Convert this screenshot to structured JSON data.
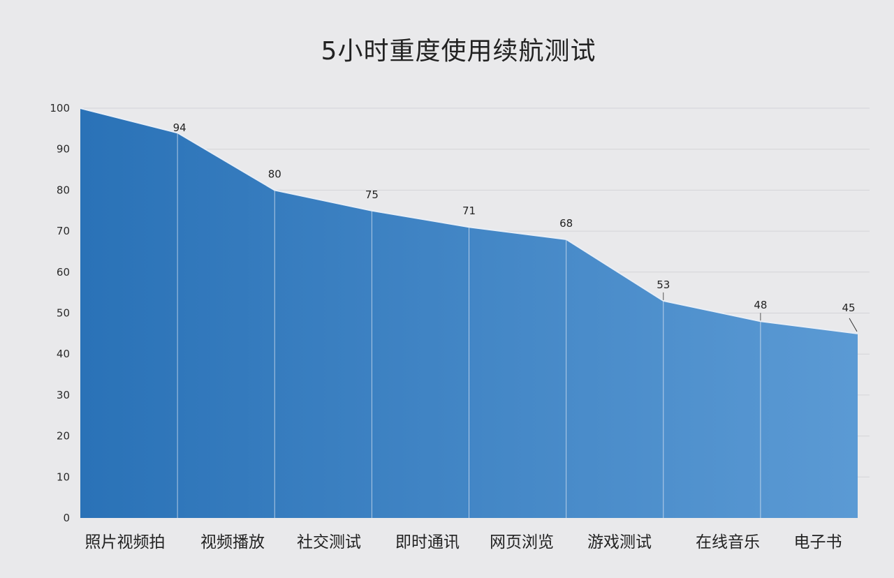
{
  "chart_data": {
    "type": "area",
    "title": "5小时重度使用续航测试",
    "xlabel": "",
    "ylabel": "",
    "ylim": [
      0,
      100
    ],
    "yticks": [
      0,
      10,
      20,
      30,
      40,
      50,
      60,
      70,
      80,
      90,
      100
    ],
    "categories": [
      "照片视频拍",
      "视频播放",
      "社交测试",
      "即时通讯",
      "网页浏览",
      "游戏测试",
      "在线音乐",
      "电子书"
    ],
    "points": [
      {
        "x": "start",
        "y": 100
      },
      {
        "x": "照片视频拍",
        "y": 94
      },
      {
        "x": "视频播放",
        "y": 80
      },
      {
        "x": "社交测试",
        "y": 75
      },
      {
        "x": "即时通讯",
        "y": 71
      },
      {
        "x": "网页浏览",
        "y": 68
      },
      {
        "x": "游戏测试",
        "y": 53
      },
      {
        "x": "在线音乐",
        "y": 48
      },
      {
        "x": "电子书",
        "y": 45
      }
    ],
    "data_labels": [
      "94",
      "80",
      "75",
      "71",
      "68",
      "53",
      "48",
      "45"
    ],
    "grid": true,
    "colors": {
      "fill_start": "#2a72b7",
      "fill_end": "#5b9ad4",
      "edge": "#e8eef6",
      "grid": "#d4d4d8",
      "divider": "#dce6f2"
    }
  }
}
